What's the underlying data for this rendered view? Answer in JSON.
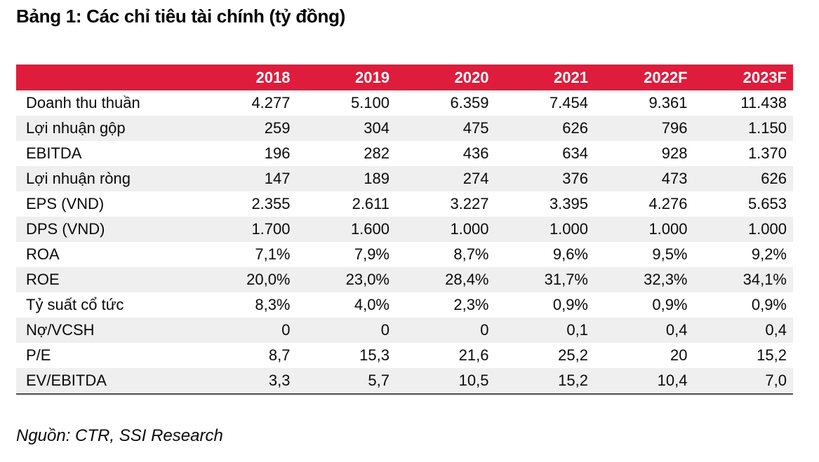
{
  "colors": {
    "header_bg": "#E01C3C",
    "header_text": "#FFFFFF",
    "row_alt_bg": "#EFEFEF",
    "border_dark": "#4D4D4D",
    "text": "#000000"
  },
  "chart_data": {
    "type": "table",
    "title": "Bảng 1: Các chỉ tiêu tài chính (tỷ đồng)",
    "columns": [
      "",
      "2018",
      "2019",
      "2020",
      "2021",
      "2022F",
      "2023F"
    ],
    "rows": [
      {
        "label": "Doanh thu thuần",
        "values": [
          "4.277",
          "5.100",
          "6.359",
          "7.454",
          "9.361",
          "11.438"
        ]
      },
      {
        "label": "Lợi nhuận gộp",
        "values": [
          "259",
          "304",
          "475",
          "626",
          "796",
          "1.150"
        ]
      },
      {
        "label": "EBITDA",
        "values": [
          "196",
          "282",
          "436",
          "634",
          "928",
          "1.370"
        ]
      },
      {
        "label": "Lợi nhuận ròng",
        "values": [
          "147",
          "189",
          "274",
          "376",
          "473",
          "626"
        ]
      },
      {
        "label": "EPS (VND)",
        "values": [
          "2.355",
          "2.611",
          "3.227",
          "3.395",
          "4.276",
          "5.653"
        ]
      },
      {
        "label": "DPS (VND)",
        "values": [
          "1.700",
          "1.600",
          "1.000",
          "1.000",
          "1.000",
          "1.000"
        ]
      },
      {
        "label": "ROA",
        "values": [
          "7,1%",
          "7,9%",
          "8,7%",
          "9,6%",
          "9,5%",
          "9,2%"
        ]
      },
      {
        "label": "ROE",
        "values": [
          "20,0%",
          "23,0%",
          "28,4%",
          "31,7%",
          "32,3%",
          "34,1%"
        ]
      },
      {
        "label": "Tỷ suất cổ tức",
        "values": [
          "8,3%",
          "4,0%",
          "2,3%",
          "0,9%",
          "0,9%",
          "0,9%"
        ]
      },
      {
        "label": "Nợ/VCSH",
        "values": [
          "0",
          "0",
          "0",
          "0,1",
          "0,4",
          "0,4"
        ]
      },
      {
        "label": "P/E",
        "values": [
          "8,7",
          "15,3",
          "21,6",
          "25,2",
          "20",
          "15,2"
        ]
      },
      {
        "label": "EV/EBITDA",
        "values": [
          "3,3",
          "5,7",
          "10,5",
          "15,2",
          "10,4",
          "7,0"
        ]
      }
    ],
    "source": "Nguồn: CTR, SSI Research"
  }
}
